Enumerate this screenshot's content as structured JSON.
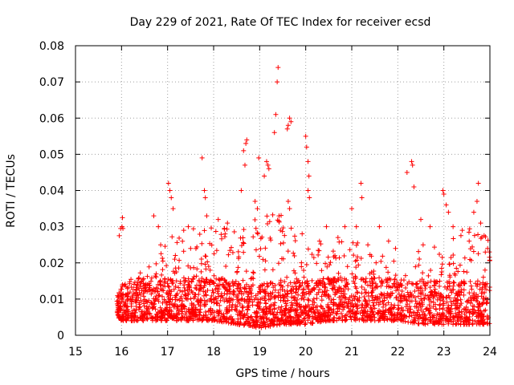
{
  "chart_data": {
    "type": "scatter",
    "title": "Day 229 of 2021, Rate Of TEC Index for receiver ecsd",
    "xlabel": "GPS time / hours",
    "ylabel": "ROTI / TECUs",
    "xlim": [
      15,
      24
    ],
    "ylim": [
      0,
      0.08
    ],
    "x_ticks": [
      "15",
      "16",
      "17",
      "18",
      "19",
      "20",
      "21",
      "22",
      "23",
      "24"
    ],
    "y_ticks": [
      "0",
      "0.01",
      "0.02",
      "0.03",
      "0.04",
      "0.05",
      "0.06",
      "0.07",
      "0.08"
    ],
    "grid": true,
    "marker": "+",
    "color": "#ff0000",
    "series": [
      {
        "name": "ROTI",
        "points": [
          [
            15.95,
            0.0275
          ],
          [
            15.98,
            0.0295
          ],
          [
            16.01,
            0.03
          ],
          [
            16.03,
            0.0295
          ],
          [
            16.02,
            0.0325
          ],
          [
            15.98,
            0.008
          ],
          [
            16.0,
            0.01
          ],
          [
            16.02,
            0.014
          ],
          [
            16.05,
            0.007
          ],
          [
            16.7,
            0.033
          ],
          [
            16.8,
            0.03
          ],
          [
            16.85,
            0.025
          ],
          [
            17.02,
            0.042
          ],
          [
            17.05,
            0.04
          ],
          [
            17.08,
            0.038
          ],
          [
            17.12,
            0.035
          ],
          [
            17.35,
            0.029
          ],
          [
            17.45,
            0.03
          ],
          [
            17.5,
            0.024
          ],
          [
            17.75,
            0.049
          ],
          [
            17.8,
            0.04
          ],
          [
            17.82,
            0.038
          ],
          [
            17.85,
            0.033
          ],
          [
            18.1,
            0.032
          ],
          [
            18.25,
            0.028
          ],
          [
            18.3,
            0.031
          ],
          [
            18.6,
            0.04
          ],
          [
            18.65,
            0.051
          ],
          [
            18.7,
            0.053
          ],
          [
            18.72,
            0.054
          ],
          [
            18.68,
            0.047
          ],
          [
            18.9,
            0.037
          ],
          [
            18.95,
            0.035
          ],
          [
            18.98,
            0.049
          ],
          [
            19.1,
            0.044
          ],
          [
            19.15,
            0.048
          ],
          [
            19.18,
            0.047
          ],
          [
            19.2,
            0.046
          ],
          [
            19.32,
            0.056
          ],
          [
            19.35,
            0.061
          ],
          [
            19.38,
            0.07
          ],
          [
            19.4,
            0.074
          ],
          [
            19.42,
            0.033
          ],
          [
            19.45,
            0.029
          ],
          [
            19.6,
            0.057
          ],
          [
            19.62,
            0.058
          ],
          [
            19.65,
            0.06
          ],
          [
            19.68,
            0.059
          ],
          [
            19.62,
            0.037
          ],
          [
            19.65,
            0.035
          ],
          [
            20.0,
            0.055
          ],
          [
            20.02,
            0.052
          ],
          [
            20.05,
            0.048
          ],
          [
            20.07,
            0.044
          ],
          [
            20.05,
            0.04
          ],
          [
            20.08,
            0.038
          ],
          [
            20.3,
            0.026
          ],
          [
            20.45,
            0.03
          ],
          [
            20.7,
            0.027
          ],
          [
            20.85,
            0.03
          ],
          [
            21.0,
            0.035
          ],
          [
            21.1,
            0.03
          ],
          [
            21.2,
            0.042
          ],
          [
            21.22,
            0.038
          ],
          [
            21.35,
            0.025
          ],
          [
            21.6,
            0.03
          ],
          [
            21.8,
            0.026
          ],
          [
            21.95,
            0.024
          ],
          [
            22.2,
            0.045
          ],
          [
            22.3,
            0.048
          ],
          [
            22.32,
            0.047
          ],
          [
            22.35,
            0.041
          ],
          [
            22.5,
            0.032
          ],
          [
            22.55,
            0.025
          ],
          [
            22.7,
            0.03
          ],
          [
            22.98,
            0.04
          ],
          [
            23.0,
            0.039
          ],
          [
            23.05,
            0.036
          ],
          [
            23.1,
            0.034
          ],
          [
            23.2,
            0.03
          ],
          [
            23.4,
            0.029
          ],
          [
            23.55,
            0.026
          ],
          [
            23.65,
            0.034
          ],
          [
            23.72,
            0.037
          ],
          [
            23.75,
            0.042
          ],
          [
            23.8,
            0.031
          ],
          [
            23.9,
            0.023
          ],
          [
            23.95,
            0.024
          ]
        ],
        "envelope": {
          "note": "dense point cloud; base band and upper envelope in data units used to generate background points",
          "x": [
            15.9,
            16.0,
            16.5,
            17.0,
            17.5,
            18.0,
            18.5,
            19.0,
            19.5,
            20.0,
            20.5,
            21.0,
            21.5,
            22.0,
            22.5,
            23.0,
            23.5,
            24.0
          ],
          "low": [
            0.005,
            0.004,
            0.004,
            0.004,
            0.004,
            0.004,
            0.003,
            0.002,
            0.003,
            0.003,
            0.004,
            0.004,
            0.004,
            0.004,
            0.003,
            0.003,
            0.003,
            0.003
          ],
          "high": [
            0.012,
            0.014,
            0.018,
            0.028,
            0.03,
            0.03,
            0.03,
            0.035,
            0.035,
            0.027,
            0.025,
            0.027,
            0.023,
            0.02,
            0.024,
            0.026,
            0.03,
            0.028
          ]
        }
      }
    ]
  }
}
